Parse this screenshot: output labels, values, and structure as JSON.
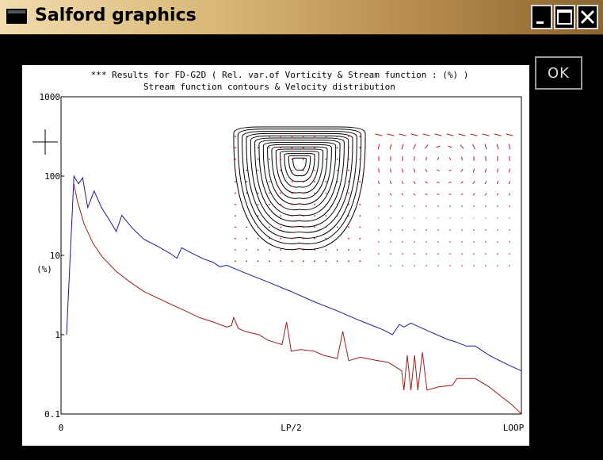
{
  "window": {
    "title": "Salford graphics",
    "minimize_icon": "minimize-icon",
    "maximize_icon": "maximize-icon",
    "close_icon": "close-icon"
  },
  "ok_button": {
    "label": "OK"
  },
  "colors": {
    "series_blue": "#1a1a9c",
    "series_red": "#a01c1c",
    "contour": "#000000",
    "vector": "#b01e1e"
  },
  "chart_data": {
    "type": "line",
    "title": "*** Results for FD-G2D ( Rel. var.of Vorticity & Stream function : (%) )",
    "subtitle": "Stream function contours & Velocity distribution",
    "ylabel": "(%)",
    "y_scale": "log",
    "ylim": [
      0.1,
      1000
    ],
    "y_ticks": [
      "1000",
      "100",
      "10",
      "1",
      "0.1"
    ],
    "x_ticks": [
      "0",
      "LP/2",
      "LOOP"
    ],
    "xlim": [
      0,
      1
    ],
    "grid": false,
    "legend": "none",
    "series": [
      {
        "color": "blue",
        "points": [
          [
            0.012,
            1.0
          ],
          [
            0.028,
            100
          ],
          [
            0.038,
            80
          ],
          [
            0.047,
            95
          ],
          [
            0.058,
            40
          ],
          [
            0.072,
            65
          ],
          [
            0.088,
            40
          ],
          [
            0.105,
            28
          ],
          [
            0.12,
            20
          ],
          [
            0.132,
            32
          ],
          [
            0.155,
            22
          ],
          [
            0.18,
            16
          ],
          [
            0.21,
            13
          ],
          [
            0.238,
            10.5
          ],
          [
            0.252,
            9.2
          ],
          [
            0.262,
            12.5
          ],
          [
            0.28,
            11
          ],
          [
            0.31,
            9
          ],
          [
            0.33,
            8.2
          ],
          [
            0.345,
            7.2
          ],
          [
            0.36,
            7.5
          ],
          [
            0.4,
            6
          ],
          [
            0.45,
            4.6
          ],
          [
            0.5,
            3.5
          ],
          [
            0.55,
            2.6
          ],
          [
            0.6,
            2.0
          ],
          [
            0.65,
            1.5
          ],
          [
            0.7,
            1.15
          ],
          [
            0.72,
            1.0
          ],
          [
            0.735,
            1.35
          ],
          [
            0.745,
            1.25
          ],
          [
            0.76,
            1.4
          ],
          [
            0.8,
            1.1
          ],
          [
            0.84,
            0.87
          ],
          [
            0.86,
            0.8
          ],
          [
            0.88,
            0.72
          ],
          [
            0.9,
            0.72
          ],
          [
            0.93,
            0.55
          ],
          [
            0.97,
            0.42
          ],
          [
            1.0,
            0.35
          ]
        ]
      },
      {
        "color": "red",
        "points": [
          [
            0.028,
            80
          ],
          [
            0.035,
            50
          ],
          [
            0.05,
            25
          ],
          [
            0.07,
            14
          ],
          [
            0.09,
            9.5
          ],
          [
            0.12,
            6.3
          ],
          [
            0.15,
            4.6
          ],
          [
            0.18,
            3.5
          ],
          [
            0.21,
            2.9
          ],
          [
            0.24,
            2.4
          ],
          [
            0.27,
            2.0
          ],
          [
            0.3,
            1.65
          ],
          [
            0.33,
            1.45
          ],
          [
            0.36,
            1.25
          ],
          [
            0.37,
            1.3
          ],
          [
            0.375,
            1.65
          ],
          [
            0.385,
            1.2
          ],
          [
            0.4,
            1.1
          ],
          [
            0.43,
            1.0
          ],
          [
            0.45,
            0.85
          ],
          [
            0.48,
            0.75
          ],
          [
            0.49,
            1.45
          ],
          [
            0.5,
            0.62
          ],
          [
            0.52,
            0.65
          ],
          [
            0.55,
            0.62
          ],
          [
            0.57,
            0.55
          ],
          [
            0.6,
            0.5
          ],
          [
            0.612,
            1.1
          ],
          [
            0.625,
            0.47
          ],
          [
            0.65,
            0.52
          ],
          [
            0.68,
            0.48
          ],
          [
            0.71,
            0.45
          ],
          [
            0.725,
            0.4
          ],
          [
            0.74,
            0.35
          ],
          [
            0.745,
            0.2
          ],
          [
            0.752,
            0.55
          ],
          [
            0.76,
            0.2
          ],
          [
            0.768,
            0.55
          ],
          [
            0.775,
            0.2
          ],
          [
            0.785,
            0.6
          ],
          [
            0.795,
            0.2
          ],
          [
            0.82,
            0.22
          ],
          [
            0.85,
            0.23
          ],
          [
            0.86,
            0.28
          ],
          [
            0.9,
            0.28
          ],
          [
            0.93,
            0.22
          ],
          [
            0.96,
            0.16
          ],
          [
            0.98,
            0.13
          ],
          [
            1.0,
            0.1
          ]
        ]
      }
    ]
  }
}
